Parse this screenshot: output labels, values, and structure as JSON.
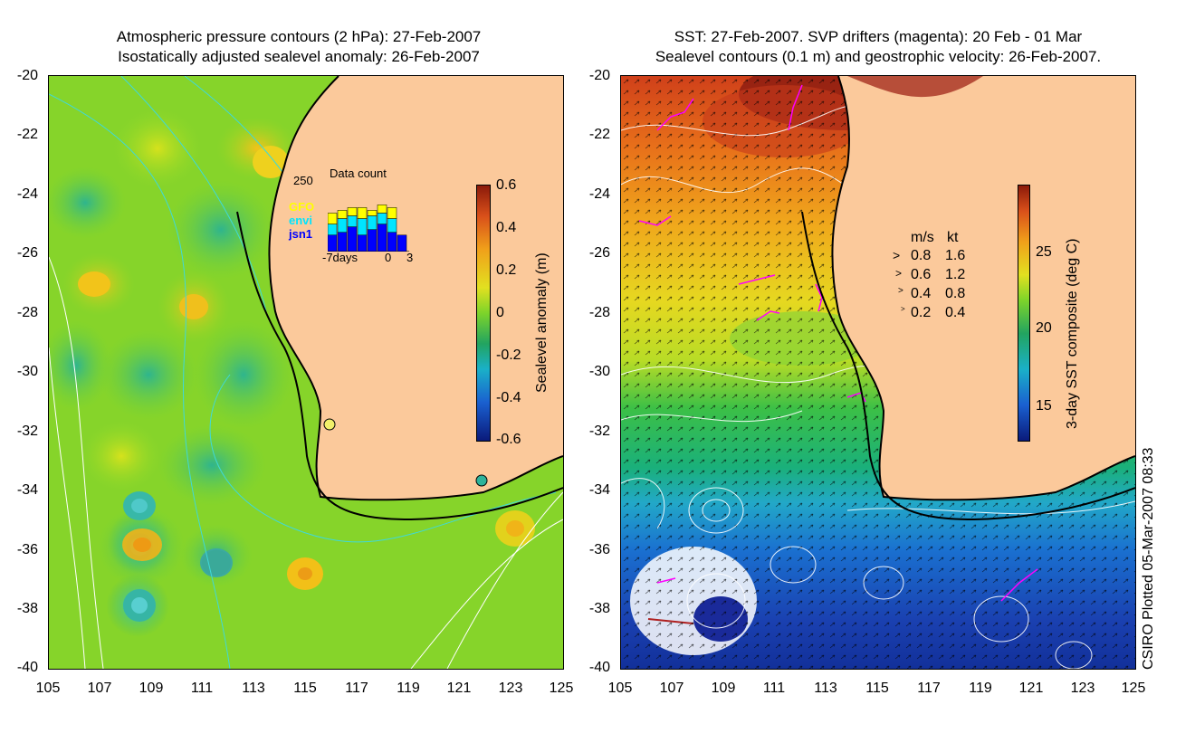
{
  "left_panel": {
    "title_line1": "Atmospheric pressure contours (2 hPa): 27-Feb-2007",
    "title_line2": "Isostatically adjusted sealevel anomaly: 26-Feb-2007",
    "y_ticks": [
      "-20",
      "-22",
      "-24",
      "-26",
      "-28",
      "-30",
      "-32",
      "-34",
      "-36",
      "-38",
      "-40"
    ],
    "x_ticks": [
      "105",
      "107",
      "109",
      "111",
      "113",
      "115",
      "117",
      "119",
      "121",
      "123",
      "125"
    ],
    "colorbar": {
      "label": "Sealevel anomaly (m)",
      "ticks": [
        "0.6",
        "0.4",
        "0.2",
        "0",
        "-0.2",
        "-0.4",
        "-0.6"
      ],
      "min": -0.6,
      "max": 0.6
    },
    "data_count_inset": {
      "title": "Data count",
      "y_max_label": "250",
      "x_left_label": "-7days",
      "x_zero_label": "0",
      "x_right_label": "3",
      "legend": [
        {
          "name": "GFO",
          "color": "#ffff00"
        },
        {
          "name": "envi",
          "color": "#00e5ff"
        },
        {
          "name": "jsn1",
          "color": "#0000ff"
        }
      ],
      "bars": [
        {
          "jsn1": 60,
          "envi": 40,
          "gfo": 40
        },
        {
          "jsn1": 70,
          "envi": 50,
          "gfo": 30
        },
        {
          "jsn1": 90,
          "envi": 40,
          "gfo": 30
        },
        {
          "jsn1": 60,
          "envi": 60,
          "gfo": 40
        },
        {
          "jsn1": 80,
          "envi": 50,
          "gfo": 20
        },
        {
          "jsn1": 100,
          "envi": 40,
          "gfo": 30
        },
        {
          "jsn1": 70,
          "envi": 50,
          "gfo": 40
        },
        {
          "jsn1": 60,
          "envi": 0,
          "gfo": 0
        }
      ]
    }
  },
  "right_panel": {
    "title_line1": "SST: 27-Feb-2007. SVP drifters (magenta): 20 Feb - 01 Mar",
    "title_line2": "Sealevel contours (0.1 m) and geostrophic velocity: 26-Feb-2007.",
    "y_ticks": [
      "-20",
      "-22",
      "-24",
      "-26",
      "-28",
      "-30",
      "-32",
      "-34",
      "-36",
      "-38",
      "-40"
    ],
    "x_ticks": [
      "105",
      "107",
      "109",
      "111",
      "113",
      "115",
      "117",
      "119",
      "121",
      "123",
      "125"
    ],
    "colorbar": {
      "label": "3-day SST composite (deg C)",
      "ticks": [
        "25",
        "20",
        "15"
      ],
      "min": 12,
      "max": 29
    },
    "velocity_legend": {
      "header_ms": "m/s",
      "header_kt": "kt",
      "rows": [
        {
          "ms": "0.8",
          "kt": "1.6"
        },
        {
          "ms": "0.6",
          "kt": "1.2"
        },
        {
          "ms": "0.4",
          "kt": "0.8"
        },
        {
          "ms": "0.2",
          "kt": "0.4"
        }
      ]
    }
  },
  "credit": "CSIRO Plotted 05-Mar-2007 08:33",
  "colors": {
    "land": "#fbc99b",
    "coast": "#000000",
    "drifter": "#ff00ff",
    "pressure_contour_left": "#3fd9d9",
    "contour_white": "#ffffff"
  }
}
